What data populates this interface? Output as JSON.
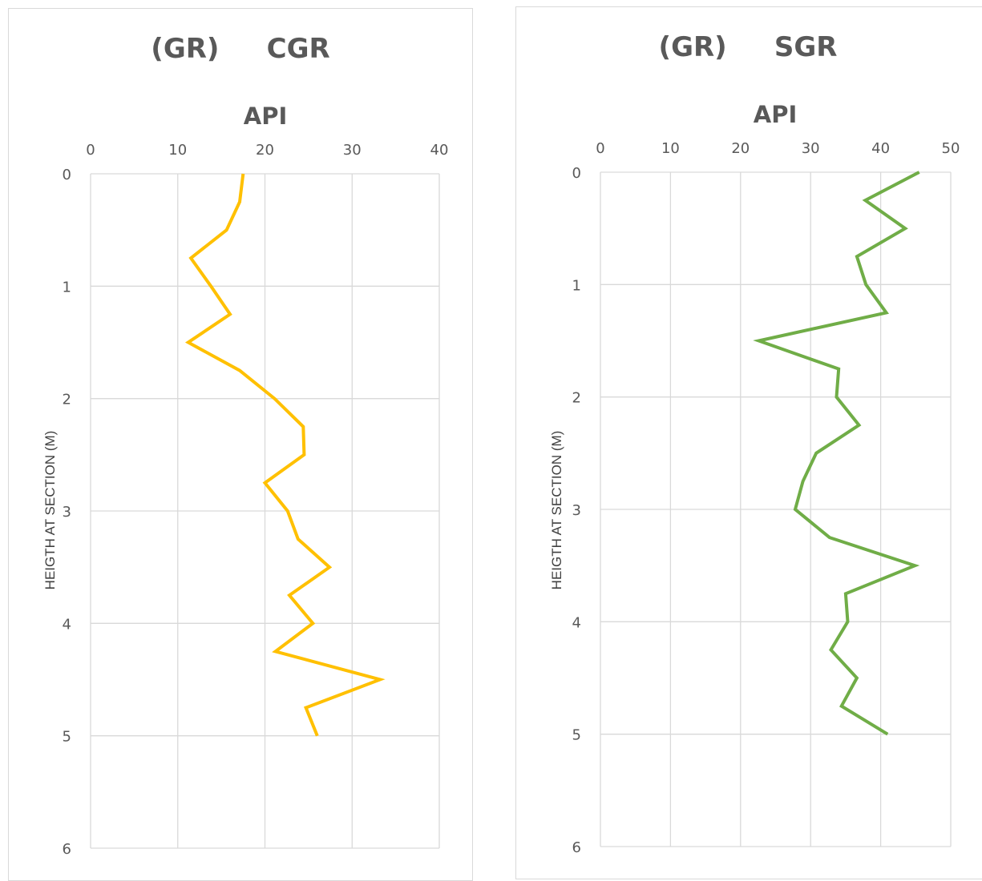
{
  "chart_data": [
    {
      "type": "line",
      "title": "(GR)     CGR",
      "xlabel": "API",
      "ylabel": "HEIGTH AT SECTION (M)",
      "xlim": [
        0,
        40
      ],
      "ylim": [
        0,
        6
      ],
      "y_inverted": true,
      "x_ticks": [
        0,
        10,
        20,
        30,
        40
      ],
      "y_ticks": [
        0,
        1,
        2,
        3,
        4,
        5,
        6
      ],
      "grid": true,
      "color": "#ffc000",
      "series": [
        {
          "x": [
            17.5,
            17.1,
            15.6,
            11.5,
            13.8,
            16.0,
            11.2,
            17.1,
            21.1,
            24.4,
            24.5,
            20.0,
            22.6,
            23.8,
            27.4,
            22.8,
            25.5,
            21.2,
            33.2,
            24.7,
            26.0
          ],
          "y": [
            0,
            0.25,
            0.5,
            0.75,
            1.0,
            1.25,
            1.5,
            1.75,
            2.0,
            2.25,
            2.5,
            2.75,
            3.0,
            3.25,
            3.5,
            3.75,
            4.0,
            4.25,
            4.5,
            4.75,
            5.0
          ]
        }
      ]
    },
    {
      "type": "line",
      "title": "(GR)     SGR",
      "xlabel": "API",
      "ylabel": "HEIGTH AT SECTION (M)",
      "xlim": [
        0,
        50
      ],
      "ylim": [
        0,
        6
      ],
      "y_inverted": true,
      "x_ticks": [
        0,
        10,
        20,
        30,
        40,
        50
      ],
      "y_ticks": [
        0,
        1,
        2,
        3,
        4,
        5,
        6
      ],
      "grid": true,
      "color": "#70ad47",
      "series": [
        {
          "x": [
            45.5,
            37.8,
            43.5,
            36.6,
            37.9,
            40.8,
            22.6,
            34.0,
            33.7,
            36.9,
            30.8,
            28.9,
            27.8,
            32.7,
            44.9,
            35.0,
            35.3,
            32.9,
            36.6,
            34.4,
            41.0
          ],
          "y": [
            0,
            0.25,
            0.5,
            0.75,
            1.0,
            1.25,
            1.5,
            1.75,
            2.0,
            2.25,
            2.5,
            2.75,
            3.0,
            3.25,
            3.5,
            3.75,
            4.0,
            4.25,
            4.5,
            4.75,
            5.0
          ]
        }
      ]
    }
  ]
}
